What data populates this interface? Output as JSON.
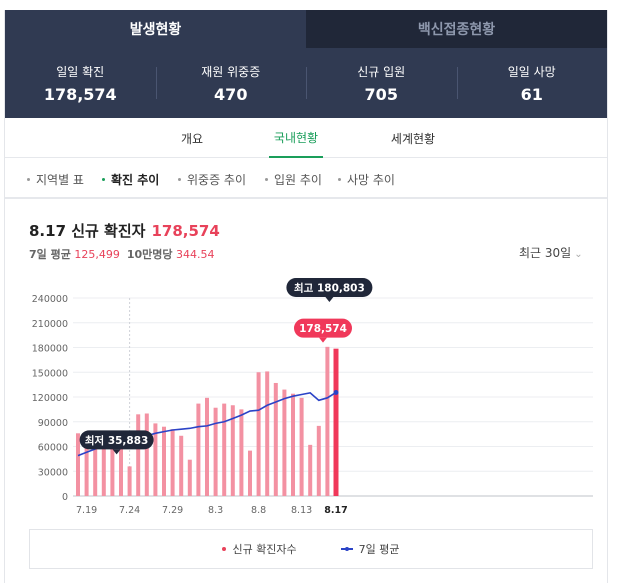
{
  "tabs": {
    "active": "발생현황",
    "inactive": "백신접종현황"
  },
  "stats": [
    {
      "label": "일일 확진",
      "value": "178,574"
    },
    {
      "label": "재원 위중증",
      "value": "470"
    },
    {
      "label": "신규 입원",
      "value": "705"
    },
    {
      "label": "일일 사망",
      "value": "61"
    }
  ],
  "subtabs": {
    "overview": "개요",
    "domestic": "국내현황",
    "world": "세계현황"
  },
  "filters": [
    "지역별 표",
    "확진 추이",
    "위중증 추이",
    "입원 추이",
    "사망 추이"
  ],
  "headline": {
    "text": "8.17 신규 확진자",
    "value": "178,574"
  },
  "subline": {
    "avg_label": "7일 평균",
    "avg_value": "125,499",
    "per_label": "10만명당",
    "per_value": "344.54"
  },
  "range": {
    "label": "최근 30일"
  },
  "legend": {
    "cases": "신규 확진자수",
    "avg": "7일 평균"
  },
  "colors": {
    "bar": "#f391a2",
    "bar_highlight": "#f0385a",
    "avg_line": "#2b43c7",
    "callout": "#202739"
  },
  "chart_data": {
    "type": "bar",
    "x": [
      "7.18",
      "7.19",
      "7.20",
      "7.21",
      "7.22",
      "7.23",
      "7.24",
      "7.25",
      "7.26",
      "7.27",
      "7.28",
      "7.29",
      "7.30",
      "7.31",
      "8.1",
      "8.2",
      "8.3",
      "8.4",
      "8.5",
      "8.6",
      "8.7",
      "8.8",
      "8.9",
      "8.10",
      "8.11",
      "8.12",
      "8.13",
      "8.14",
      "8.15",
      "8.16",
      "8.17"
    ],
    "x_tick_labels": [
      "7.19",
      "7.24",
      "7.29",
      "8.3",
      "8.8",
      "8.13",
      "8.17"
    ],
    "series": [
      {
        "name": "신규 확진자수",
        "type": "bar",
        "values": [
          76000,
          71000,
          69000,
          68000,
          65000,
          62000,
          35883,
          99000,
          100000,
          88000,
          84000,
          81000,
          73000,
          44000,
          112000,
          119000,
          107000,
          112000,
          110000,
          105000,
          55000,
          150000,
          151000,
          137000,
          129000,
          124000,
          119000,
          62000,
          85000,
          180803,
          178574
        ]
      },
      {
        "name": "7일 평균",
        "type": "line",
        "values": [
          49000,
          53000,
          57000,
          61000,
          64000,
          66000,
          68000,
          70000,
          73000,
          76000,
          78000,
          80000,
          81000,
          82000,
          84000,
          85000,
          88000,
          90000,
          94000,
          98000,
          103000,
          104000,
          110000,
          114000,
          118000,
          121000,
          123000,
          125000,
          116000,
          119000,
          125499
        ]
      }
    ],
    "ylim": [
      0,
      240000
    ],
    "yticks": [
      "0",
      "30000",
      "60000",
      "90000",
      "120000",
      "150000",
      "180000",
      "210000",
      "240000"
    ],
    "annotations": {
      "min": {
        "label": "최저 35,883",
        "index": 6
      },
      "max": {
        "label": "최고 180,803",
        "index": 29
      },
      "latest": {
        "label": "178,574",
        "index": 30
      }
    },
    "grid": true
  }
}
